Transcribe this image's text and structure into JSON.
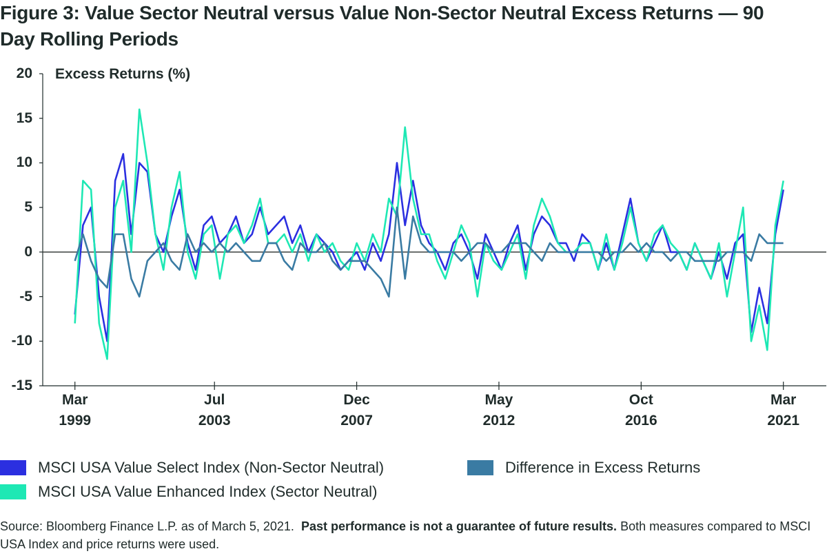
{
  "chart_data": {
    "type": "line",
    "title": "Figure 3: Value Sector Neutral versus Value Non-Sector Neutral Excess Returns — 90 Day Rolling Periods",
    "ylabel": "Excess Returns (%)",
    "x": [
      "1999-03",
      "1999-06",
      "1999-09",
      "1999-12",
      "2000-03",
      "2000-06",
      "2000-09",
      "2000-12",
      "2001-03",
      "2001-06",
      "2001-09",
      "2001-12",
      "2002-03",
      "2002-06",
      "2002-09",
      "2002-12",
      "2003-03",
      "2003-06",
      "2003-09",
      "2003-12",
      "2004-03",
      "2004-06",
      "2004-09",
      "2004-12",
      "2005-03",
      "2005-06",
      "2005-09",
      "2005-12",
      "2006-03",
      "2006-06",
      "2006-09",
      "2006-12",
      "2007-03",
      "2007-06",
      "2007-09",
      "2007-12",
      "2008-03",
      "2008-06",
      "2008-09",
      "2008-12",
      "2009-03",
      "2009-06",
      "2009-09",
      "2009-12",
      "2010-03",
      "2010-06",
      "2010-09",
      "2010-12",
      "2011-03",
      "2011-06",
      "2011-09",
      "2011-12",
      "2012-03",
      "2012-06",
      "2012-09",
      "2012-12",
      "2013-03",
      "2013-06",
      "2013-09",
      "2013-12",
      "2014-03",
      "2014-06",
      "2014-09",
      "2014-12",
      "2015-03",
      "2015-06",
      "2015-09",
      "2015-12",
      "2016-03",
      "2016-06",
      "2016-09",
      "2016-12",
      "2017-03",
      "2017-06",
      "2017-09",
      "2017-12",
      "2018-03",
      "2018-06",
      "2018-09",
      "2018-12",
      "2019-03",
      "2019-06",
      "2019-09",
      "2019-12",
      "2020-03",
      "2020-06",
      "2020-09",
      "2020-12",
      "2021-03"
    ],
    "series": [
      {
        "name": "MSCI USA Value Select Index (Non-Sector Neutral)",
        "color": "#2b2fe0",
        "values": [
          -7,
          3,
          5,
          -5,
          -10,
          8,
          11,
          2,
          10,
          9,
          2,
          0,
          4,
          7,
          1,
          -2,
          3,
          4,
          1,
          2,
          4,
          1,
          2,
          5,
          2,
          3,
          4,
          1,
          3,
          0,
          2,
          1,
          0,
          -2,
          -1,
          0,
          -2,
          1,
          -1,
          2,
          10,
          3,
          8,
          3,
          1,
          0,
          -2,
          1,
          2,
          0,
          -3,
          2,
          0,
          -2,
          1,
          3,
          -2,
          2,
          4,
          3,
          1,
          1,
          -1,
          2,
          1,
          -2,
          1,
          -2,
          2,
          6,
          1,
          -1,
          1,
          3,
          0,
          0,
          -2,
          1,
          -1,
          -3,
          0,
          -3,
          1,
          2,
          -9,
          -4,
          -8,
          2,
          7
        ]
      },
      {
        "name": "MSCI USA Value Enhanced Index (Sector Neutral)",
        "color": "#1ee8b4",
        "values": [
          -8,
          8,
          7,
          -8,
          -12,
          5,
          8,
          0,
          16,
          10,
          2,
          -2,
          5,
          9,
          0,
          -3,
          2,
          3,
          -3,
          2,
          3,
          1,
          3,
          6,
          1,
          1,
          2,
          0,
          2,
          -1,
          2,
          0,
          1,
          -1,
          -2,
          1,
          -1,
          2,
          0,
          6,
          4,
          14,
          6,
          2,
          2,
          -1,
          -3,
          0,
          3,
          1,
          -5,
          1,
          -1,
          -2,
          0,
          2,
          -3,
          3,
          6,
          4,
          1,
          0,
          0,
          1,
          1,
          -2,
          2,
          -2,
          1,
          5,
          1,
          -1,
          2,
          3,
          1,
          0,
          -2,
          1,
          -1,
          -3,
          1,
          -5,
          0,
          5,
          -10,
          -6,
          -11,
          3,
          8
        ]
      },
      {
        "name": "Difference in Excess Returns",
        "color": "#3a7ba3",
        "values": [
          -1,
          2,
          -1,
          -3,
          -4,
          2,
          2,
          -3,
          -5,
          -1,
          0,
          1,
          -1,
          -2,
          2,
          0,
          1,
          0,
          1,
          0,
          1,
          0,
          -1,
          -1,
          1,
          1,
          -1,
          -2,
          1,
          0,
          0,
          1,
          -1,
          -2,
          -1,
          -1,
          -1,
          -2,
          -3,
          -5,
          5,
          -3,
          4,
          1,
          0,
          0,
          0,
          0,
          -1,
          0,
          1,
          1,
          0,
          0,
          1,
          1,
          1,
          0,
          -1,
          1,
          0,
          0,
          0,
          0,
          0,
          0,
          -1,
          0,
          0,
          1,
          0,
          1,
          0,
          0,
          -1,
          0,
          0,
          -1,
          -1,
          -1,
          -1,
          0,
          0,
          0,
          -1,
          2,
          1,
          1,
          1
        ]
      }
    ],
    "xlim": [
      "1998-03",
      "2022-07"
    ],
    "xticks": [
      {
        "value": "1999-03",
        "label": "Mar 1999"
      },
      {
        "value": "2003-07",
        "label": "Jul 2003"
      },
      {
        "value": "2007-12",
        "label": "Dec 2007"
      },
      {
        "value": "2012-05",
        "label": "May 2012"
      },
      {
        "value": "2016-10",
        "label": "Oct 2016"
      },
      {
        "value": "2021-03",
        "label": "Mar 2021"
      }
    ],
    "ylim": [
      -15,
      20
    ],
    "yticks": [
      -15,
      -10,
      -5,
      0,
      5,
      10,
      15,
      20
    ],
    "grid": false,
    "zero_line": true,
    "source": [
      "Source: Bloomberg Finance L.P. as of March 5, 2021.",
      "Past performance is not a guarantee of future results.",
      "Both measures compared to MSCI USA Index and price returns were used."
    ]
  }
}
